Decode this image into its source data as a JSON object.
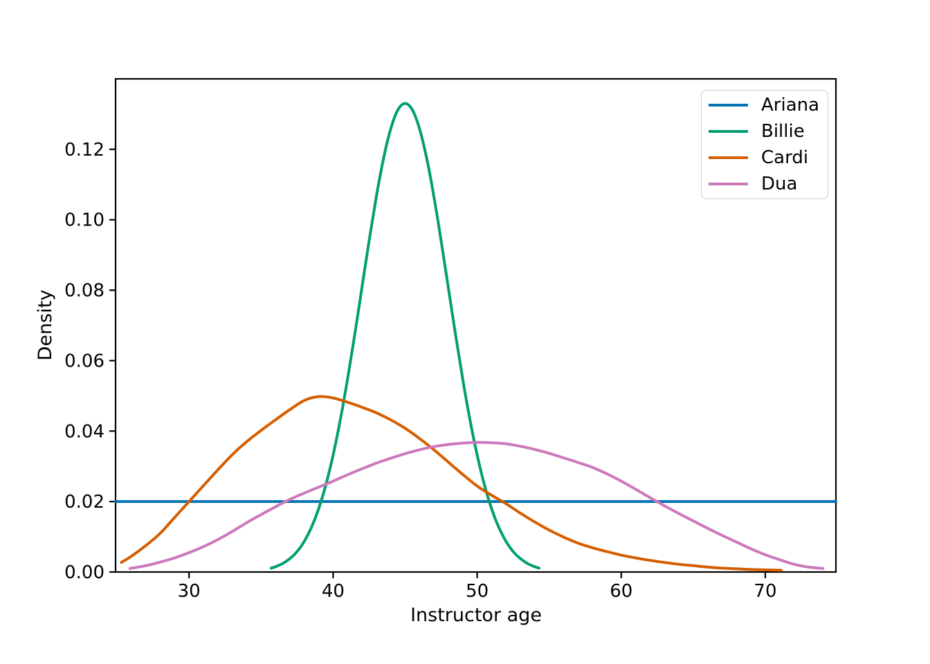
{
  "chart_data": {
    "type": "line",
    "title": "",
    "xlabel": "Instructor age",
    "ylabel": "Density",
    "xlim": [
      24.9,
      74.9
    ],
    "ylim": [
      0,
      0.14
    ],
    "grid": false,
    "legend_position": "upper right",
    "xticks": {
      "values": [
        30,
        40,
        50,
        60,
        70
      ],
      "labels": [
        "30",
        "40",
        "50",
        "60",
        "70"
      ]
    },
    "yticks": {
      "values": [
        0,
        0.02,
        0.04,
        0.06,
        0.08,
        0.1,
        0.12
      ],
      "labels": [
        "0.00",
        "0.02",
        "0.04",
        "0.06",
        "0.08",
        "0.10",
        "0.12"
      ]
    },
    "axis_color": "#000000",
    "series": [
      {
        "name": "Ariana",
        "color": "#0173b2",
        "shape": "uniform",
        "peak": {
          "x": null,
          "y": 0.02
        },
        "points": [
          [
            24.9,
            0.02
          ],
          [
            74.9,
            0.02
          ]
        ]
      },
      {
        "name": "Billie",
        "color": "#029e73",
        "shape": "normal-narrow",
        "peak": {
          "x": 45,
          "y": 0.133
        },
        "points": [
          [
            35.7,
            0.0011
          ],
          [
            36,
            0.0015
          ],
          [
            36.5,
            0.0024
          ],
          [
            37,
            0.0038
          ],
          [
            37.5,
            0.0058
          ],
          [
            38,
            0.0087
          ],
          [
            38.5,
            0.0127
          ],
          [
            39,
            0.018
          ],
          [
            39.5,
            0.0248
          ],
          [
            40,
            0.0332
          ],
          [
            40.5,
            0.0432
          ],
          [
            41,
            0.0547
          ],
          [
            41.5,
            0.0673
          ],
          [
            42,
            0.0807
          ],
          [
            42.5,
            0.094
          ],
          [
            43,
            0.1065
          ],
          [
            43.5,
            0.1174
          ],
          [
            44,
            0.1258
          ],
          [
            44.5,
            0.1312
          ],
          [
            45,
            0.133
          ],
          [
            45.5,
            0.1312
          ],
          [
            46,
            0.1258
          ],
          [
            46.5,
            0.1174
          ],
          [
            47,
            0.1065
          ],
          [
            47.5,
            0.094
          ],
          [
            48,
            0.0807
          ],
          [
            48.5,
            0.0673
          ],
          [
            49,
            0.0547
          ],
          [
            49.5,
            0.0432
          ],
          [
            50,
            0.0332
          ],
          [
            50.5,
            0.0248
          ],
          [
            51,
            0.018
          ],
          [
            51.5,
            0.0127
          ],
          [
            52,
            0.0087
          ],
          [
            52.5,
            0.0058
          ],
          [
            53,
            0.0038
          ],
          [
            53.5,
            0.0024
          ],
          [
            54,
            0.0015
          ],
          [
            54.3,
            0.0011
          ]
        ]
      },
      {
        "name": "Cardi",
        "color": "#d55e00",
        "shape": "right-skewed",
        "peak": {
          "x": 39,
          "y": 0.0498
        },
        "points": [
          [
            25.3,
            0.0027
          ],
          [
            26,
            0.0045
          ],
          [
            27,
            0.0075
          ],
          [
            28,
            0.011
          ],
          [
            29,
            0.0155
          ],
          [
            30,
            0.02
          ],
          [
            31,
            0.0245
          ],
          [
            32,
            0.029
          ],
          [
            33,
            0.0333
          ],
          [
            34,
            0.037
          ],
          [
            35,
            0.0402
          ],
          [
            36,
            0.0432
          ],
          [
            37,
            0.0461
          ],
          [
            38,
            0.0487
          ],
          [
            39,
            0.0498
          ],
          [
            40,
            0.0494
          ],
          [
            41,
            0.0482
          ],
          [
            42,
            0.0468
          ],
          [
            43,
            0.0452
          ],
          [
            44,
            0.0432
          ],
          [
            45,
            0.0408
          ],
          [
            46,
            0.0379
          ],
          [
            47,
            0.0347
          ],
          [
            48,
            0.0312
          ],
          [
            49,
            0.0277
          ],
          [
            50,
            0.0244
          ],
          [
            51,
            0.0218
          ],
          [
            52,
            0.0194
          ],
          [
            53,
            0.0167
          ],
          [
            54,
            0.0142
          ],
          [
            55,
            0.0119
          ],
          [
            56,
            0.0099
          ],
          [
            57,
            0.0082
          ],
          [
            58,
            0.0069
          ],
          [
            59,
            0.0058
          ],
          [
            60,
            0.0048
          ],
          [
            61,
            0.004
          ],
          [
            62,
            0.0033
          ],
          [
            63,
            0.0027
          ],
          [
            64,
            0.0022
          ],
          [
            65,
            0.0018
          ],
          [
            66,
            0.0014
          ],
          [
            67,
            0.0011
          ],
          [
            68,
            0.0009
          ],
          [
            69,
            0.0007
          ],
          [
            70,
            0.0006
          ],
          [
            71.1,
            0.0005
          ]
        ]
      },
      {
        "name": "Dua",
        "color": "#cc78bc",
        "shape": "broad",
        "peak": {
          "x": 50,
          "y": 0.0368
        },
        "points": [
          [
            25.9,
            0.001
          ],
          [
            27,
            0.0018
          ],
          [
            28,
            0.0028
          ],
          [
            29,
            0.004
          ],
          [
            30,
            0.0055
          ],
          [
            31,
            0.0072
          ],
          [
            32,
            0.0092
          ],
          [
            33,
            0.0115
          ],
          [
            34,
            0.014
          ],
          [
            35,
            0.0163
          ],
          [
            36,
            0.0185
          ],
          [
            37,
            0.0206
          ],
          [
            38,
            0.0224
          ],
          [
            39,
            0.0241
          ],
          [
            40,
            0.0258
          ],
          [
            41,
            0.0276
          ],
          [
            42,
            0.0293
          ],
          [
            43,
            0.0309
          ],
          [
            44,
            0.0323
          ],
          [
            45,
            0.0336
          ],
          [
            46,
            0.0347
          ],
          [
            47,
            0.0356
          ],
          [
            48,
            0.0362
          ],
          [
            49,
            0.0366
          ],
          [
            50,
            0.0368
          ],
          [
            51,
            0.0367
          ],
          [
            52,
            0.0364
          ],
          [
            53,
            0.0357
          ],
          [
            54,
            0.0348
          ],
          [
            55,
            0.0337
          ],
          [
            56,
            0.0324
          ],
          [
            57,
            0.0311
          ],
          [
            58,
            0.0297
          ],
          [
            59,
            0.0279
          ],
          [
            60,
            0.0258
          ],
          [
            61,
            0.0235
          ],
          [
            62,
            0.0211
          ],
          [
            63,
            0.0188
          ],
          [
            64,
            0.0166
          ],
          [
            65,
            0.0145
          ],
          [
            66,
            0.0124
          ],
          [
            67,
            0.0104
          ],
          [
            68,
            0.0085
          ],
          [
            69,
            0.0066
          ],
          [
            70,
            0.0049
          ],
          [
            71,
            0.0035
          ],
          [
            72,
            0.0022
          ],
          [
            73,
            0.0014
          ],
          [
            74,
            0.001
          ]
        ]
      }
    ]
  }
}
